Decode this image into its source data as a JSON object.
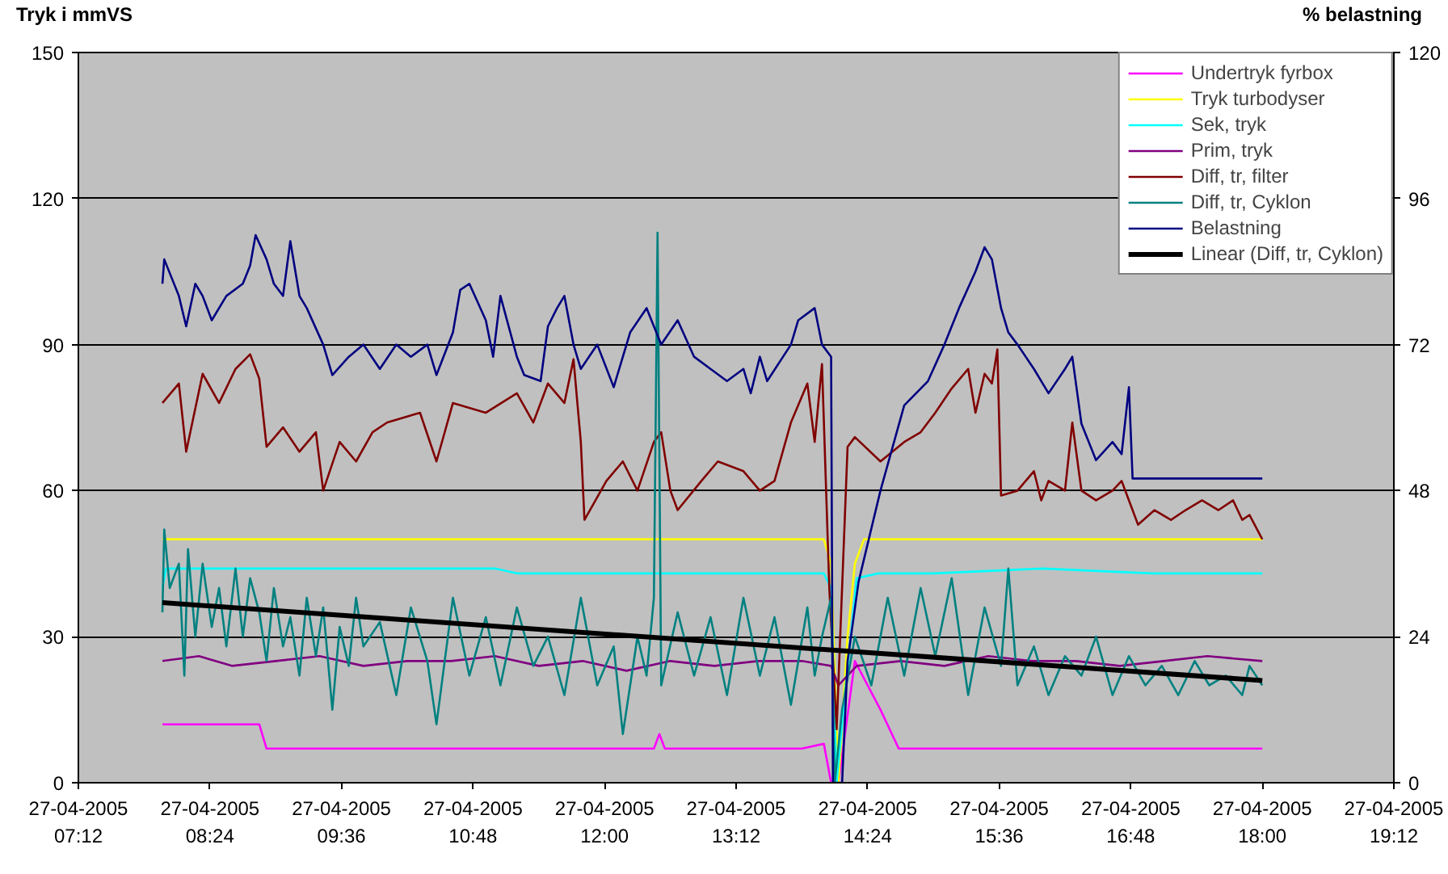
{
  "chart_data": {
    "type": "line",
    "ylabel": "Tryk i mmVS",
    "y2label": "% belastning",
    "xlim": [
      "2005-04-27T07:12",
      "2005-04-27T19:12"
    ],
    "xticks": [
      {
        "value": "2005-04-27T07:12",
        "label": "27-04-2005\n07:12"
      },
      {
        "value": "2005-04-27T08:24",
        "label": "27-04-2005\n08:24"
      },
      {
        "value": "2005-04-27T09:36",
        "label": "27-04-2005\n09:36"
      },
      {
        "value": "2005-04-27T10:48",
        "label": "27-04-2005\n10:48"
      },
      {
        "value": "2005-04-27T12:00",
        "label": "27-04-2005\n12:00"
      },
      {
        "value": "2005-04-27T13:12",
        "label": "27-04-2005\n13:12"
      },
      {
        "value": "2005-04-27T14:24",
        "label": "27-04-2005\n14:24"
      },
      {
        "value": "2005-04-27T15:36",
        "label": "27-04-2005\n15:36"
      },
      {
        "value": "2005-04-27T16:48",
        "label": "27-04-2005\n16:48"
      },
      {
        "value": "2005-04-27T18:00",
        "label": "27-04-2005\n18:00"
      },
      {
        "value": "2005-04-27T19:12",
        "label": "27-04-2005\n19:12"
      }
    ],
    "ylim": [
      0,
      150
    ],
    "yticks": [
      0,
      30,
      60,
      90,
      120,
      150
    ],
    "y2lim": [
      0,
      120
    ],
    "y2ticks": [
      0,
      24,
      48,
      72,
      96,
      120
    ],
    "grid": "y",
    "legend": "top right",
    "line_style": "solid",
    "marker": "none",
    "series": [
      {
        "name": "Undertryk fyrbox",
        "color": "#ff00ff",
        "x": [
          "2005-04-27T07:58",
          "2005-04-27T08:18",
          "2005-04-27T08:36",
          "2005-04-27T08:51",
          "2005-04-27T08:55",
          "2005-04-27T09:30",
          "2005-04-27T10:30",
          "2005-04-27T11:30",
          "2005-04-27T12:27",
          "2005-04-27T12:30",
          "2005-04-27T12:33",
          "2005-04-27T13:00",
          "2005-04-27T13:48",
          "2005-04-27T14:00",
          "2005-04-27T14:04",
          "2005-04-27T14:08",
          "2005-04-27T14:17",
          "2005-04-27T14:31",
          "2005-04-27T14:41",
          "2005-04-27T15:00",
          "2005-04-27T16:00",
          "2005-04-27T17:00",
          "2005-04-27T18:00"
        ],
        "values": [
          12,
          12,
          12,
          12,
          7,
          7,
          7,
          7,
          7,
          10,
          7,
          7,
          7,
          8,
          0,
          0,
          25,
          15,
          7,
          7,
          7,
          7,
          7
        ]
      },
      {
        "name": "Tryk turbodyser",
        "color": "#ffff00",
        "x": [
          "2005-04-27T07:58",
          "2005-04-27T09:00",
          "2005-04-27T10:00",
          "2005-04-27T11:00",
          "2005-04-27T12:00",
          "2005-04-27T13:00",
          "2005-04-27T14:00",
          "2005-04-27T14:04",
          "2005-04-27T14:08",
          "2005-04-27T14:13",
          "2005-04-27T14:17",
          "2005-04-27T14:22",
          "2005-04-27T15:00",
          "2005-04-27T16:00",
          "2005-04-27T17:00",
          "2005-04-27T18:00"
        ],
        "values": [
          50,
          50,
          50,
          50,
          50,
          50,
          50,
          45,
          0,
          30,
          45,
          50,
          50,
          50,
          50,
          50
        ]
      },
      {
        "name": "Sek, tryk",
        "color": "#00ffff",
        "x": [
          "2005-04-27T07:58",
          "2005-04-27T08:00",
          "2005-04-27T09:00",
          "2005-04-27T10:00",
          "2005-04-27T11:00",
          "2005-04-27T11:12",
          "2005-04-27T12:00",
          "2005-04-27T13:00",
          "2005-04-27T14:00",
          "2005-04-27T14:04",
          "2005-04-27T14:07",
          "2005-04-27T14:12",
          "2005-04-27T14:18",
          "2005-04-27T14:30",
          "2005-04-27T15:00",
          "2005-04-27T16:00",
          "2005-04-27T17:00",
          "2005-04-27T18:00"
        ],
        "values": [
          40,
          44,
          44,
          44,
          44,
          43,
          43,
          43,
          43,
          40,
          0,
          20,
          42,
          43,
          43,
          44,
          43,
          43
        ]
      },
      {
        "name": "Prim, tryk",
        "color": "#800080",
        "x": [
          "2005-04-27T07:58",
          "2005-04-27T08:18",
          "2005-04-27T08:36",
          "2005-04-27T09:00",
          "2005-04-27T09:24",
          "2005-04-27T09:48",
          "2005-04-27T10:12",
          "2005-04-27T10:36",
          "2005-04-27T11:00",
          "2005-04-27T11:24",
          "2005-04-27T11:48",
          "2005-04-27T12:12",
          "2005-04-27T12:36",
          "2005-04-27T13:00",
          "2005-04-27T13:24",
          "2005-04-27T13:48",
          "2005-04-27T14:04",
          "2005-04-27T14:08",
          "2005-04-27T14:18",
          "2005-04-27T14:42",
          "2005-04-27T15:06",
          "2005-04-27T15:30",
          "2005-04-27T15:54",
          "2005-04-27T16:18",
          "2005-04-27T16:42",
          "2005-04-27T17:06",
          "2005-04-27T17:30",
          "2005-04-27T18:00"
        ],
        "values": [
          25,
          26,
          24,
          25,
          26,
          24,
          25,
          25,
          26,
          24,
          25,
          23,
          25,
          24,
          25,
          25,
          24,
          20,
          24,
          25,
          24,
          26,
          25,
          25,
          24,
          25,
          26,
          25
        ]
      },
      {
        "name": "Diff, tr, filter",
        "color": "#800000",
        "x": [
          "2005-04-27T07:58",
          "2005-04-27T08:07",
          "2005-04-27T08:11",
          "2005-04-27T08:20",
          "2005-04-27T08:29",
          "2005-04-27T08:38",
          "2005-04-27T08:46",
          "2005-04-27T08:51",
          "2005-04-27T08:55",
          "2005-04-27T09:04",
          "2005-04-27T09:13",
          "2005-04-27T09:22",
          "2005-04-27T09:26",
          "2005-04-27T09:35",
          "2005-04-27T09:44",
          "2005-04-27T09:53",
          "2005-04-27T10:01",
          "2005-04-27T10:19",
          "2005-04-27T10:28",
          "2005-04-27T10:37",
          "2005-04-27T10:55",
          "2005-04-27T11:12",
          "2005-04-27T11:21",
          "2005-04-27T11:29",
          "2005-04-27T11:38",
          "2005-04-27T11:43",
          "2005-04-27T11:47",
          "2005-04-27T11:49",
          "2005-04-27T12:01",
          "2005-04-27T12:10",
          "2005-04-27T12:18",
          "2005-04-27T12:27",
          "2005-04-27T12:31",
          "2005-04-27T12:36",
          "2005-04-27T12:40",
          "2005-04-27T12:53",
          "2005-04-27T13:02",
          "2005-04-27T13:16",
          "2005-04-27T13:25",
          "2005-04-27T13:33",
          "2005-04-27T13:42",
          "2005-04-27T13:51",
          "2005-04-27T13:55",
          "2005-04-27T13:59",
          "2005-04-27T14:03",
          "2005-04-27T14:07",
          "2005-04-27T14:13",
          "2005-04-27T14:17",
          "2005-04-27T14:31",
          "2005-04-27T14:44",
          "2005-04-27T14:53",
          "2005-04-27T15:01",
          "2005-04-27T15:10",
          "2005-04-27T15:19",
          "2005-04-27T15:23",
          "2005-04-27T15:28",
          "2005-04-27T15:32",
          "2005-04-27T15:35",
          "2005-04-27T15:37",
          "2005-04-27T15:46",
          "2005-04-27T15:55",
          "2005-04-27T15:59",
          "2005-04-27T16:03",
          "2005-04-27T16:12",
          "2005-04-27T16:16",
          "2005-04-27T16:21",
          "2005-04-27T16:29",
          "2005-04-27T16:38",
          "2005-04-27T16:43",
          "2005-04-27T16:47",
          "2005-04-27T16:52",
          "2005-04-27T17:01",
          "2005-04-27T17:10",
          "2005-04-27T17:18",
          "2005-04-27T17:27",
          "2005-04-27T17:36",
          "2005-04-27T17:44",
          "2005-04-27T17:49",
          "2005-04-27T17:53",
          "2005-04-27T18:00"
        ],
        "values": [
          78,
          82,
          68,
          84,
          78,
          85,
          88,
          83,
          69,
          73,
          68,
          72,
          60,
          70,
          66,
          72,
          74,
          76,
          66,
          78,
          76,
          80,
          74,
          82,
          78,
          87,
          70,
          54,
          62,
          66,
          60,
          70,
          72,
          60,
          56,
          62,
          66,
          64,
          60,
          62,
          74,
          82,
          70,
          86,
          40,
          11,
          69,
          71,
          66,
          70,
          72,
          76,
          81,
          85,
          76,
          84,
          82,
          89,
          59,
          60,
          64,
          58,
          62,
          60,
          74,
          60,
          58,
          60,
          62,
          58,
          53,
          56,
          54,
          56,
          58,
          56,
          58,
          54,
          55,
          50
        ]
      },
      {
        "name": "Diff, tr, Cyklon",
        "color": "#008080",
        "x": [
          "2005-04-27T07:58",
          "2005-04-27T07:59",
          "2005-04-27T08:02",
          "2005-04-27T08:07",
          "2005-04-27T08:10",
          "2005-04-27T08:12",
          "2005-04-27T08:16",
          "2005-04-27T08:20",
          "2005-04-27T08:25",
          "2005-04-27T08:29",
          "2005-04-27T08:33",
          "2005-04-27T08:38",
          "2005-04-27T08:42",
          "2005-04-27T08:46",
          "2005-04-27T08:51",
          "2005-04-27T08:55",
          "2005-04-27T08:59",
          "2005-04-27T09:04",
          "2005-04-27T09:08",
          "2005-04-27T09:13",
          "2005-04-27T09:17",
          "2005-04-27T09:22",
          "2005-04-27T09:26",
          "2005-04-27T09:31",
          "2005-04-27T09:35",
          "2005-04-27T09:40",
          "2005-04-27T09:44",
          "2005-04-27T09:48",
          "2005-04-27T09:57",
          "2005-04-27T10:06",
          "2005-04-27T10:14",
          "2005-04-27T10:23",
          "2005-04-27T10:28",
          "2005-04-27T10:37",
          "2005-04-27T10:46",
          "2005-04-27T10:55",
          "2005-04-27T11:03",
          "2005-04-27T11:12",
          "2005-04-27T11:21",
          "2005-04-27T11:29",
          "2005-04-27T11:38",
          "2005-04-27T11:47",
          "2005-04-27T11:56",
          "2005-04-27T12:05",
          "2005-04-27T12:10",
          "2005-04-27T12:18",
          "2005-04-27T12:23",
          "2005-04-27T12:27",
          "2005-04-27T12:29",
          "2005-04-27T12:31",
          "2005-04-27T12:40",
          "2005-04-27T12:49",
          "2005-04-27T12:58",
          "2005-04-27T13:07",
          "2005-04-27T13:16",
          "2005-04-27T13:25",
          "2005-04-27T13:33",
          "2005-04-27T13:42",
          "2005-04-27T13:51",
          "2005-04-27T13:55",
          "2005-04-27T13:59",
          "2005-04-27T14:04",
          "2005-04-27T14:06",
          "2005-04-27T14:10",
          "2005-04-27T14:17",
          "2005-04-27T14:26",
          "2005-04-27T14:35",
          "2005-04-27T14:44",
          "2005-04-27T14:53",
          "2005-04-27T15:01",
          "2005-04-27T15:10",
          "2005-04-27T15:19",
          "2005-04-27T15:28",
          "2005-04-27T15:37",
          "2005-04-27T15:41",
          "2005-04-27T15:46",
          "2005-04-27T15:55",
          "2005-04-27T16:03",
          "2005-04-27T16:12",
          "2005-04-27T16:21",
          "2005-04-27T16:29",
          "2005-04-27T16:38",
          "2005-04-27T16:47",
          "2005-04-27T16:56",
          "2005-04-27T17:05",
          "2005-04-27T17:14",
          "2005-04-27T17:23",
          "2005-04-27T17:31",
          "2005-04-27T17:40",
          "2005-04-27T17:49",
          "2005-04-27T17:53",
          "2005-04-27T18:00"
        ],
        "values": [
          35,
          52,
          40,
          45,
          22,
          48,
          30,
          45,
          32,
          40,
          28,
          44,
          30,
          42,
          35,
          25,
          40,
          28,
          34,
          22,
          38,
          26,
          36,
          15,
          32,
          24,
          38,
          28,
          33,
          18,
          36,
          25,
          12,
          38,
          22,
          34,
          20,
          36,
          24,
          30,
          18,
          38,
          20,
          28,
          10,
          30,
          22,
          38,
          113,
          20,
          35,
          22,
          34,
          18,
          38,
          22,
          34,
          16,
          36,
          22,
          30,
          38,
          0,
          15,
          30,
          20,
          38,
          22,
          40,
          26,
          42,
          18,
          36,
          24,
          44,
          20,
          28,
          18,
          26,
          22,
          30,
          18,
          26,
          20,
          24,
          18,
          25,
          20,
          22,
          18,
          24,
          20
        ]
      },
      {
        "name": "Belastning",
        "color": "#000080",
        "axis": "y2",
        "x": [
          "2005-04-27T07:58",
          "2005-04-27T07:59",
          "2005-04-27T08:07",
          "2005-04-27T08:11",
          "2005-04-27T08:16",
          "2005-04-27T08:20",
          "2005-04-27T08:25",
          "2005-04-27T08:33",
          "2005-04-27T08:42",
          "2005-04-27T08:46",
          "2005-04-27T08:49",
          "2005-04-27T08:55",
          "2005-04-27T08:59",
          "2005-04-27T09:04",
          "2005-04-27T09:08",
          "2005-04-27T09:13",
          "2005-04-27T09:17",
          "2005-04-27T09:26",
          "2005-04-27T09:31",
          "2005-04-27T09:40",
          "2005-04-27T09:48",
          "2005-04-27T09:57",
          "2005-04-27T10:06",
          "2005-04-27T10:14",
          "2005-04-27T10:23",
          "2005-04-27T10:28",
          "2005-04-27T10:37",
          "2005-04-27T10:41",
          "2005-04-27T10:46",
          "2005-04-27T10:55",
          "2005-04-27T10:59",
          "2005-04-27T11:03",
          "2005-04-27T11:12",
          "2005-04-27T11:16",
          "2005-04-27T11:25",
          "2005-04-27T11:29",
          "2005-04-27T11:34",
          "2005-04-27T11:38",
          "2005-04-27T11:43",
          "2005-04-27T11:47",
          "2005-04-27T11:56",
          "2005-04-27T12:05",
          "2005-04-27T12:14",
          "2005-04-27T12:23",
          "2005-04-27T12:31",
          "2005-04-27T12:40",
          "2005-04-27T12:49",
          "2005-04-27T12:58",
          "2005-04-27T13:07",
          "2005-04-27T13:16",
          "2005-04-27T13:20",
          "2005-04-27T13:25",
          "2005-04-27T13:29",
          "2005-04-27T13:42",
          "2005-04-27T13:46",
          "2005-04-27T13:55",
          "2005-04-27T13:59",
          "2005-04-27T14:04",
          "2005-04-27T14:05",
          "2005-04-27T14:10",
          "2005-04-27T14:13",
          "2005-04-27T14:19",
          "2005-04-27T14:31",
          "2005-04-27T14:44",
          "2005-04-27T14:57",
          "2005-04-27T15:06",
          "2005-04-27T15:14",
          "2005-04-27T15:23",
          "2005-04-27T15:28",
          "2005-04-27T15:32",
          "2005-04-27T15:37",
          "2005-04-27T15:41",
          "2005-04-27T15:46",
          "2005-04-27T15:55",
          "2005-04-27T16:03",
          "2005-04-27T16:12",
          "2005-04-27T16:16",
          "2005-04-27T16:21",
          "2005-04-27T16:29",
          "2005-04-27T16:38",
          "2005-04-27T16:43",
          "2005-04-27T16:47",
          "2005-04-27T16:49",
          "2005-04-27T18:00"
        ],
        "values": [
          82,
          86,
          80,
          75,
          82,
          80,
          76,
          80,
          82,
          85,
          90,
          86,
          82,
          80,
          89,
          80,
          78,
          72,
          67,
          70,
          72,
          68,
          72,
          70,
          72,
          67,
          74,
          81,
          82,
          76,
          70,
          80,
          70,
          67,
          66,
          75,
          78,
          80,
          72,
          68,
          72,
          65,
          74,
          78,
          72,
          76,
          70,
          68,
          66,
          68,
          64,
          70,
          66,
          72,
          76,
          78,
          72,
          70,
          0,
          0,
          20,
          33,
          48,
          62,
          66,
          72,
          78,
          84,
          88,
          86,
          78,
          74,
          72,
          68,
          64,
          68,
          70,
          59,
          53,
          56,
          54,
          65,
          50,
          50
        ]
      },
      {
        "name": "Linear (Diff, tr, Cyklon)",
        "color": "#000000",
        "x": [
          "2005-04-27T07:58",
          "2005-04-27T18:00"
        ],
        "values": [
          37,
          21
        ]
      }
    ]
  }
}
